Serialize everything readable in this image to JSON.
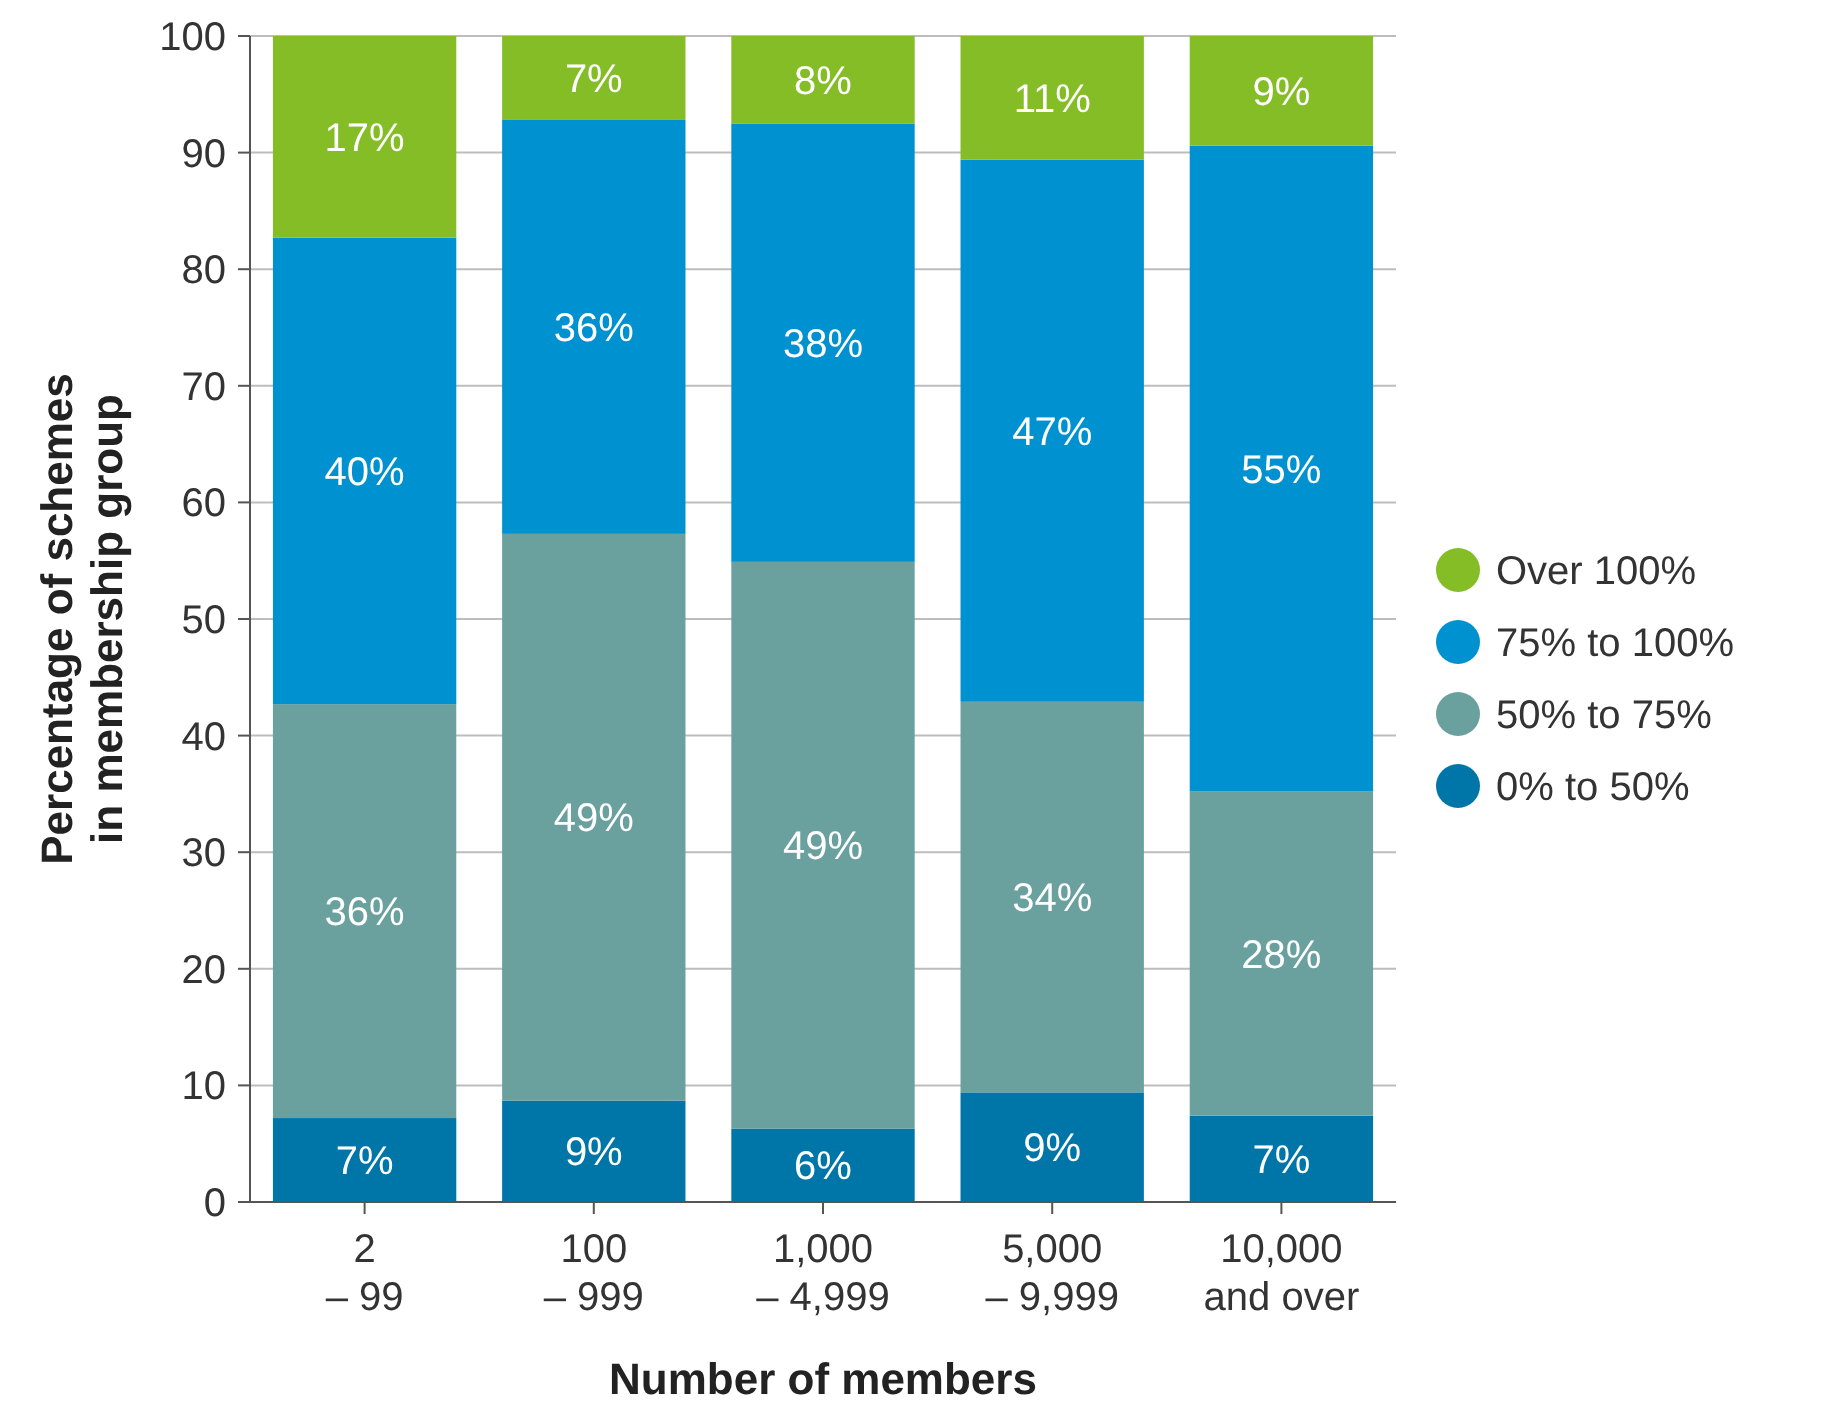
{
  "chart_data": {
    "type": "bar",
    "stacked": true,
    "xlabel": "Number of members",
    "ylabel": "Percentage of schemes in membership group",
    "categories": [
      "2\n– 99",
      "100\n– 999",
      "1,000\n– 4,999",
      "5,000\n– 9,999",
      "10,000\nand over"
    ],
    "series": [
      {
        "name": "0% to 50%",
        "color": "#0076a8",
        "values": [
          7.2,
          8.7,
          6.3,
          9.4,
          7.4
        ],
        "value_labels": [
          "7%",
          "9%",
          "6%",
          "9%",
          "7%"
        ]
      },
      {
        "name": "50% to 75%",
        "color": "#6aa09e",
        "values": [
          35.5,
          48.6,
          48.6,
          33.5,
          27.8
        ],
        "value_labels": [
          "36%",
          "49%",
          "49%",
          "34%",
          "28%"
        ]
      },
      {
        "name": "75% to 100%",
        "color": "#0091d0",
        "values": [
          40.0,
          35.5,
          37.6,
          46.5,
          55.4
        ],
        "value_labels": [
          "40%",
          "36%",
          "38%",
          "47%",
          "55%"
        ]
      },
      {
        "name": "Over 100%",
        "color": "#84bd26",
        "values": [
          17.3,
          7.2,
          7.5,
          10.6,
          9.4
        ],
        "value_labels": [
          "17%",
          "7%",
          "8%",
          "11%",
          "9%"
        ]
      }
    ],
    "ylim": [
      0,
      100
    ],
    "yticks": [
      0,
      10,
      20,
      30,
      40,
      50,
      60,
      70,
      80,
      90,
      100
    ],
    "grid": "y",
    "legend": "right"
  }
}
